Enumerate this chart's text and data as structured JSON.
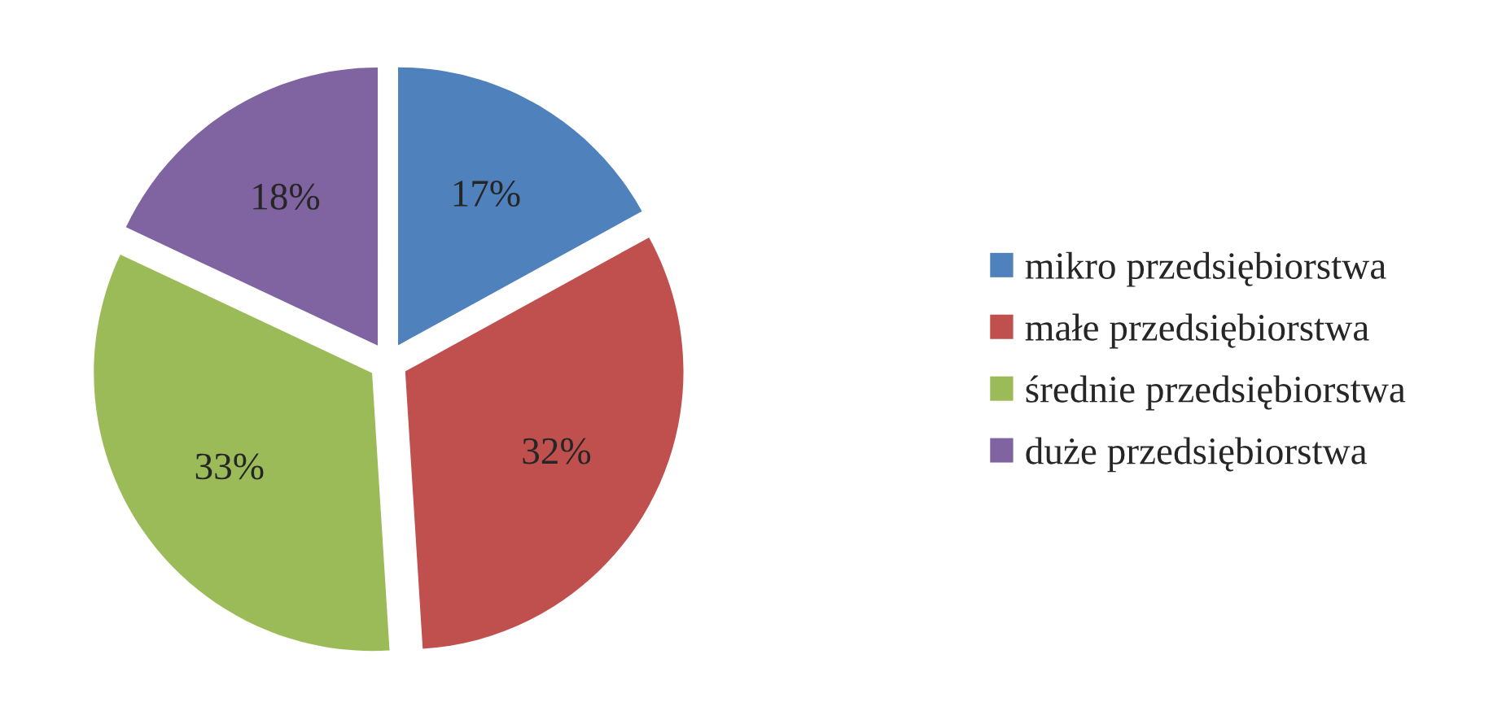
{
  "chart_data": {
    "type": "pie",
    "categories": [
      "mikro przedsiębiorstwa",
      "małe przedsiębiorstwa",
      "średnie przedsiębiorstwa",
      "duże przedsiębiorstwa"
    ],
    "values": [
      17,
      32,
      33,
      18
    ],
    "value_labels": [
      "17%",
      "32%",
      "33%",
      "18%"
    ],
    "colors": [
      "#4f81bd",
      "#c0504d",
      "#9bbb59",
      "#8064a2"
    ],
    "legend": "right"
  }
}
